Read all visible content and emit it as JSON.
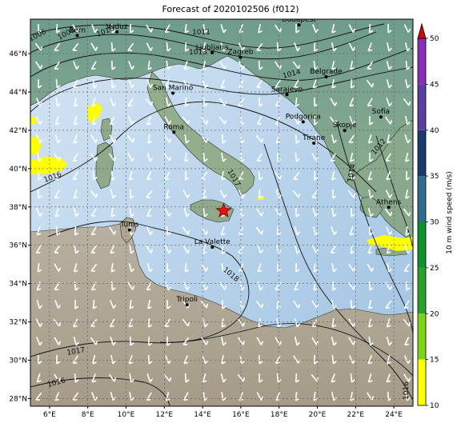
{
  "title": "Forecast of 2020102506 (f012)",
  "lon_ticks": [
    "6°E",
    "8°E",
    "10°E",
    "12°E",
    "14°E",
    "16°E",
    "18°E",
    "20°E",
    "22°E",
    "24°E"
  ],
  "lat_ticks": [
    "28°N",
    "30°N",
    "32°N",
    "34°N",
    "36°N",
    "38°N",
    "40°N",
    "42°N",
    "44°N",
    "46°N"
  ],
  "map_extent": {
    "lon": [
      5,
      25
    ],
    "lat": [
      27.6,
      47.8
    ]
  },
  "cities": [
    {
      "name": "Bern",
      "lon": 7.45,
      "lat": 46.95
    },
    {
      "name": "Vaduz",
      "lon": 9.52,
      "lat": 47.14
    },
    {
      "name": "Budapest",
      "lon": 19.04,
      "lat": 47.5
    },
    {
      "name": "Ljubljana",
      "lon": 14.5,
      "lat": 46.05
    },
    {
      "name": "Zagreb",
      "lon": 15.98,
      "lat": 45.81
    },
    {
      "name": "San Marino",
      "lon": 12.45,
      "lat": 43.94
    },
    {
      "name": "Belgrade",
      "lon": 20.46,
      "lat": 44.79
    },
    {
      "name": "Sarajevo",
      "lon": 18.41,
      "lat": 43.86
    },
    {
      "name": "Roma",
      "lon": 12.5,
      "lat": 41.9
    },
    {
      "name": "Podgorica",
      "lon": 19.26,
      "lat": 42.44
    },
    {
      "name": "Skopje",
      "lon": 21.43,
      "lat": 41.99
    },
    {
      "name": "Sofia",
      "lon": 23.32,
      "lat": 42.7
    },
    {
      "name": "Tirane",
      "lon": 19.82,
      "lat": 41.33
    },
    {
      "name": "Athens",
      "lon": 23.73,
      "lat": 37.98
    },
    {
      "name": "Tunis",
      "lon": 10.18,
      "lat": 36.8
    },
    {
      "name": "La Valette",
      "lon": 14.51,
      "lat": 35.9
    },
    {
      "name": "Tripoli",
      "lon": 13.19,
      "lat": 32.89
    }
  ],
  "marker": {
    "name": "star-marker",
    "lon": 15.1,
    "lat": 37.8,
    "color": "#ee1111"
  },
  "isobar_labels": [
    "1006",
    "1008",
    "1010",
    "1011",
    "1013",
    "1014",
    "1016",
    "1017",
    "1018",
    "1012",
    "1014",
    "1016",
    "1017",
    "1016"
  ],
  "colorbar": {
    "label": "10 m wind speed (m/s)",
    "ticks": [
      "10",
      "15",
      "20",
      "25",
      "30",
      "35",
      "40",
      "45",
      "50"
    ],
    "colors": [
      "#ffff00",
      "#7fd319",
      "#2ca02c",
      "#11902e",
      "#2e6b8f",
      "#1b3a6b",
      "#5b3fa0",
      "#8a2fb5",
      "#a12ed2"
    ],
    "extend_color": "#d90000"
  },
  "colors": {
    "sea": "#bdd7ee",
    "land": "#a89f8c",
    "relief": "#7a9e82",
    "wind_barb": "#ffffff",
    "isobar": "#111111"
  }
}
